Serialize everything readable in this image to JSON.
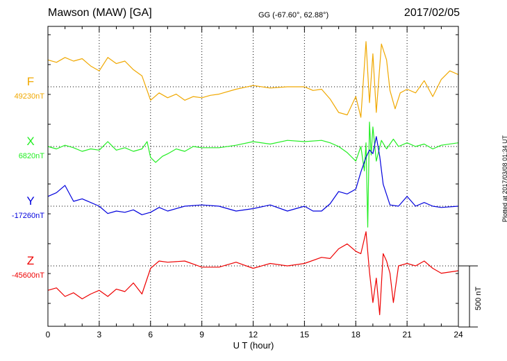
{
  "header": {
    "station": "Mawson (MAW)  [GA]",
    "coords": "GG (-67.60°,  62.88°)",
    "date": "2017/02/05"
  },
  "footer": {
    "plotted": "Plotted at 2017/03/08 01:34 UT"
  },
  "chart_data": {
    "type": "line",
    "xlabel": "U T (hour)",
    "xlim": [
      0,
      24
    ],
    "x_ticks": [
      0,
      3,
      6,
      9,
      12,
      15,
      18,
      21,
      24
    ],
    "y_unit": "nT",
    "scale_bar": {
      "label": "500 nT",
      "value": 500
    },
    "grid": true,
    "series": [
      {
        "name": "F",
        "baseline": "49230nT",
        "baseline_value": 49230,
        "color": "#f0a800",
        "x": [
          0,
          0.5,
          1,
          1.5,
          2,
          2.5,
          3,
          3.5,
          4,
          4.5,
          5,
          5.5,
          6,
          6.5,
          7,
          7.5,
          8,
          8.5,
          9,
          9.5,
          10,
          11,
          12,
          13,
          14,
          15,
          15.5,
          16,
          16.5,
          17,
          17.5,
          18,
          18.3,
          18.6,
          18.8,
          19,
          19.2,
          19.5,
          19.8,
          20,
          20.3,
          20.6,
          21,
          21.5,
          22,
          22.5,
          23,
          23.5,
          24
        ],
        "y": [
          49450,
          49430,
          49470,
          49440,
          49460,
          49400,
          49360,
          49470,
          49420,
          49440,
          49370,
          49320,
          49120,
          49180,
          49140,
          49170,
          49120,
          49150,
          49140,
          49160,
          49170,
          49210,
          49240,
          49220,
          49230,
          49230,
          49200,
          49210,
          49130,
          49020,
          49000,
          49150,
          48980,
          49600,
          49100,
          49500,
          49020,
          49580,
          49450,
          49200,
          49050,
          49180,
          49210,
          49180,
          49280,
          49150,
          49290,
          49360,
          49330
        ]
      },
      {
        "name": "X",
        "baseline": "6820nT",
        "baseline_value": 6820,
        "color": "#22ee22",
        "x": [
          0,
          0.5,
          1,
          1.5,
          2,
          2.5,
          3,
          3.5,
          4,
          4.5,
          5,
          5.5,
          5.8,
          6,
          6.3,
          6.7,
          7,
          7.5,
          8,
          8.5,
          9,
          10,
          11,
          12,
          13,
          14,
          15,
          16,
          16.5,
          17,
          17.5,
          18,
          18.3,
          18.5,
          18.6,
          18.7,
          18.8,
          18.9,
          19,
          19.2,
          19.5,
          19.8,
          20.2,
          20.5,
          21,
          21.5,
          22,
          22.5,
          23,
          24
        ],
        "y": [
          6820,
          6800,
          6830,
          6810,
          6780,
          6800,
          6790,
          6860,
          6790,
          6810,
          6780,
          6800,
          6860,
          6730,
          6690,
          6740,
          6760,
          6800,
          6780,
          6820,
          6810,
          6810,
          6830,
          6860,
          6840,
          6870,
          6860,
          6870,
          6850,
          6820,
          6770,
          6700,
          6820,
          6620,
          6850,
          6160,
          7020,
          6750,
          6980,
          6700,
          6870,
          6800,
          6880,
          6820,
          6850,
          6820,
          6840,
          6800,
          6830,
          6850
        ]
      },
      {
        "name": "Y",
        "baseline": "-17260nT",
        "baseline_value": -17260,
        "color": "#0000dd",
        "x": [
          0,
          0.5,
          1,
          1.5,
          2,
          2.5,
          3,
          3.5,
          4,
          4.5,
          5,
          5.5,
          6,
          6.5,
          7,
          8,
          9,
          10,
          11,
          12,
          13,
          14,
          15,
          15.5,
          16,
          16.5,
          17,
          17.5,
          18,
          18.3,
          18.6,
          18.8,
          19,
          19.2,
          19.4,
          19.6,
          20,
          20.5,
          21,
          21.5,
          22,
          22.5,
          23,
          24
        ],
        "y": [
          -17180,
          -17150,
          -17090,
          -17220,
          -17200,
          -17230,
          -17260,
          -17320,
          -17300,
          -17310,
          -17290,
          -17330,
          -17310,
          -17270,
          -17300,
          -17260,
          -17250,
          -17260,
          -17300,
          -17280,
          -17250,
          -17300,
          -17260,
          -17300,
          -17300,
          -17240,
          -17140,
          -17160,
          -17120,
          -16980,
          -16860,
          -16800,
          -16830,
          -16690,
          -16850,
          -17080,
          -17250,
          -17260,
          -17180,
          -17260,
          -17230,
          -17260,
          -17270,
          -17260
        ]
      },
      {
        "name": "Z",
        "baseline": "-45600nT",
        "baseline_value": -45600,
        "color": "#ee0000",
        "x": [
          0,
          0.5,
          1,
          1.5,
          2,
          2.5,
          3,
          3.5,
          4,
          4.5,
          5,
          5.5,
          6,
          6.5,
          7,
          8,
          9,
          10,
          11,
          12,
          13,
          14,
          15,
          16,
          16.5,
          17,
          17.5,
          18,
          18.3,
          18.6,
          18.8,
          19,
          19.2,
          19.4,
          19.6,
          19.8,
          20,
          20.2,
          20.5,
          21,
          21.5,
          22,
          22.5,
          23,
          24
        ],
        "y": [
          -45800,
          -45780,
          -45850,
          -45820,
          -45870,
          -45830,
          -45800,
          -45850,
          -45790,
          -45810,
          -45740,
          -45830,
          -45620,
          -45560,
          -45570,
          -45560,
          -45610,
          -45610,
          -45570,
          -45620,
          -45580,
          -45600,
          -45580,
          -45530,
          -45540,
          -45460,
          -45420,
          -45480,
          -45500,
          -45320,
          -45650,
          -45900,
          -45700,
          -46000,
          -45500,
          -45560,
          -45660,
          -45900,
          -45600,
          -45580,
          -45600,
          -45560,
          -45620,
          -45660,
          -45640
        ]
      }
    ]
  }
}
